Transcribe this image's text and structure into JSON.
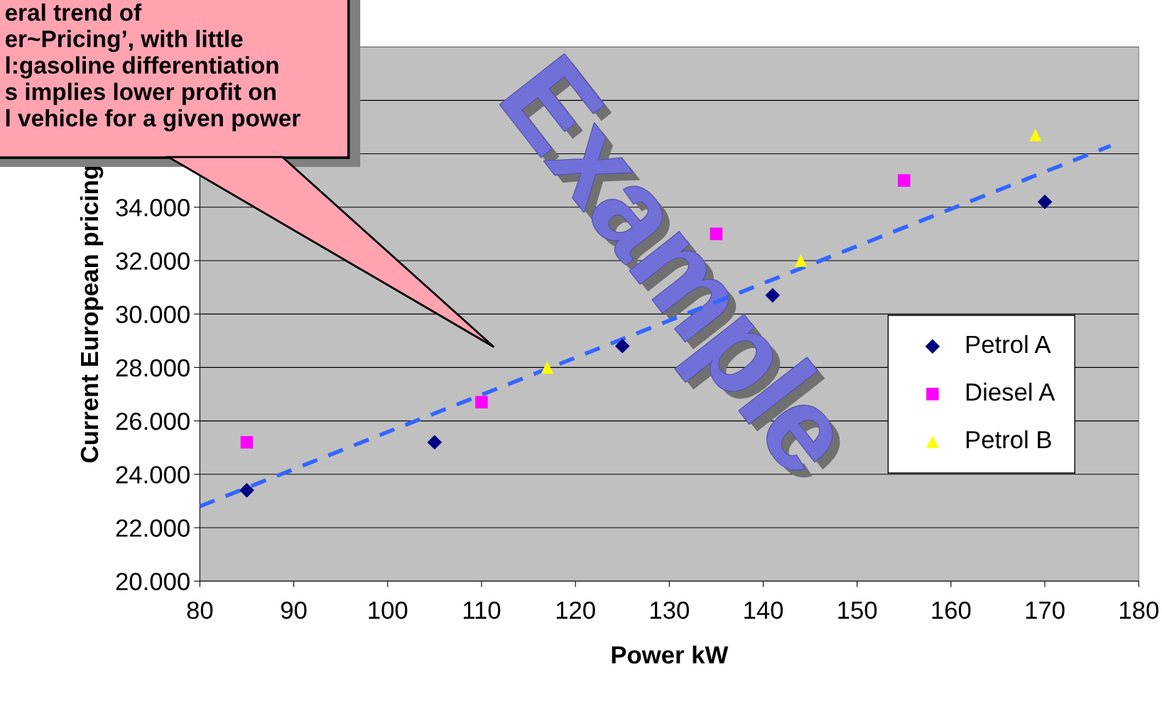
{
  "chart_data": {
    "type": "scatter",
    "xlabel": "Power kW",
    "ylabel": "Current European pricing",
    "xlim": [
      80,
      180
    ],
    "xticks": [
      80,
      90,
      100,
      110,
      120,
      130,
      140,
      150,
      160,
      170,
      180
    ],
    "ylim": [
      20000,
      40000
    ],
    "yticks": [
      {
        "value": 20000,
        "label": "20.000"
      },
      {
        "value": 22000,
        "label": "22.000"
      },
      {
        "value": 24000,
        "label": "24.000"
      },
      {
        "value": 26000,
        "label": "26.000"
      },
      {
        "value": 28000,
        "label": "28.000"
      },
      {
        "value": 30000,
        "label": "30.000"
      },
      {
        "value": 32000,
        "label": "32.000"
      },
      {
        "value": 34000,
        "label": "34.000"
      },
      {
        "value": 36000,
        "label": null
      },
      {
        "value": 38000,
        "label": null
      },
      {
        "value": 40000,
        "label": null
      }
    ],
    "grid": "y",
    "legend": "right",
    "series": [
      {
        "name": "Petrol A",
        "color": "#000080",
        "marker": "diamond",
        "x": [
          85,
          105,
          125,
          141,
          170
        ],
        "values": [
          23400,
          25200,
          28800,
          30700,
          34200
        ]
      },
      {
        "name": "Diesel A",
        "color": "#ff00ff",
        "marker": "square",
        "x": [
          85,
          110,
          135,
          155
        ],
        "values": [
          25200,
          26700,
          33000,
          35000
        ]
      },
      {
        "name": "Petrol B",
        "color": "#ffff00",
        "marker": "triangle",
        "x": [
          117,
          144,
          169
        ],
        "values": [
          28000,
          32000,
          36700
        ]
      },
      {
        "type": "line",
        "color": "#3366ff",
        "line_style": "dashed",
        "marker": "none",
        "x": [
          80,
          177
        ],
        "values": [
          22800,
          36300
        ]
      }
    ],
    "annotations": [
      "eral trend of\ner~Pricing’, with little\nl:gasoline differentiation\ns implies lower profit on\nl vehicle for a given power",
      "Example"
    ]
  }
}
